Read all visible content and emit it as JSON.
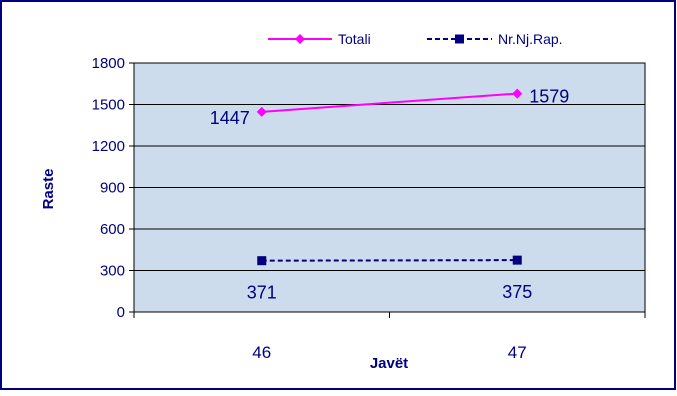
{
  "chart_data": {
    "type": "line",
    "categories": [
      "46",
      "47"
    ],
    "series": [
      {
        "name": "Totali",
        "values": [
          1447,
          1579
        ],
        "color": "#ff00ff",
        "marker": "diamond",
        "style": "solid"
      },
      {
        "name": "Nr.Nj.Rap.",
        "values": [
          371,
          375
        ],
        "color": "#000080",
        "marker": "square",
        "style": "dashed"
      }
    ],
    "xlabel": "Javët",
    "ylabel": "Raste",
    "ylim": [
      0,
      1800
    ],
    "yticks": [
      0,
      300,
      600,
      900,
      1200,
      1500,
      1800
    ],
    "grid": true,
    "legend": "top",
    "plot_background": "#ccdcec",
    "border_color": "#000080"
  }
}
